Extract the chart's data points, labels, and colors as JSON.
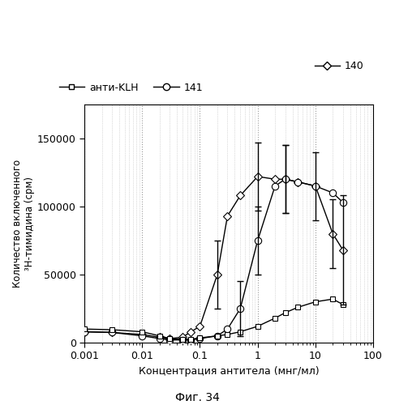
{
  "title": "",
  "xlabel": "Концентрация антитела (мнг/мл)",
  "ylabel": "Количество включенного\n³Н-тимидина (срм)",
  "fig_label": "Фиг. 34",
  "xlim": [
    0.001,
    100
  ],
  "ylim": [
    0,
    175000
  ],
  "yticks": [
    0,
    50000,
    100000,
    150000
  ],
  "series_140": {
    "label": "140",
    "x": [
      0.001,
      0.003,
      0.01,
      0.02,
      0.03,
      0.05,
      0.07,
      0.1,
      0.2,
      0.3,
      0.5,
      1.0,
      2.0,
      3.0,
      5.0,
      10.0,
      20.0,
      30.0
    ],
    "y": [
      8000,
      7500,
      6000,
      4000,
      3000,
      4000,
      8000,
      12000,
      50000,
      93000,
      108000,
      122000,
      120000,
      120000,
      118000,
      115000,
      80000,
      68000
    ],
    "yerr": [
      null,
      null,
      null,
      null,
      null,
      null,
      null,
      null,
      25000,
      null,
      null,
      25000,
      null,
      25000,
      null,
      null,
      25000,
      40000
    ]
  },
  "series_141": {
    "label": "141",
    "x": [
      0.001,
      0.003,
      0.01,
      0.02,
      0.03,
      0.05,
      0.07,
      0.1,
      0.2,
      0.3,
      0.5,
      1.0,
      2.0,
      3.0,
      5.0,
      10.0,
      20.0,
      30.0
    ],
    "y": [
      8000,
      7500,
      5000,
      3000,
      2000,
      2000,
      2000,
      3000,
      5000,
      10000,
      25000,
      75000,
      115000,
      120000,
      118000,
      115000,
      110000,
      103000
    ],
    "yerr": [
      null,
      null,
      null,
      null,
      null,
      null,
      null,
      null,
      null,
      null,
      20000,
      25000,
      null,
      25000,
      null,
      25000,
      null,
      null
    ]
  },
  "series_klh": {
    "label": "анти-KLH",
    "x": [
      0.001,
      0.003,
      0.01,
      0.02,
      0.03,
      0.05,
      0.07,
      0.1,
      0.2,
      0.3,
      0.5,
      1.0,
      2.0,
      3.0,
      5.0,
      10.0,
      20.0,
      30.0
    ],
    "y": [
      10000,
      9500,
      8000,
      5000,
      3000,
      2500,
      2500,
      3500,
      5000,
      6000,
      8000,
      12000,
      18000,
      22000,
      26000,
      30000,
      32000,
      28000
    ],
    "yerr": [
      null,
      null,
      null,
      null,
      null,
      null,
      null,
      null,
      null,
      null,
      null,
      null,
      null,
      null,
      null,
      null,
      null,
      null
    ]
  },
  "background_color": "#ffffff"
}
